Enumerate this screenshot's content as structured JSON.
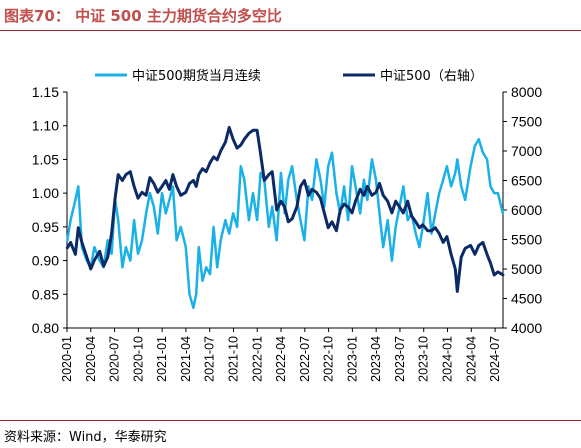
{
  "title": "图表70： 中证 500 主力期货合约多空比",
  "source": "资料来源：Wind，华泰研究",
  "colors": {
    "light": "#1ab0e8",
    "dark": "#0c2a66",
    "title": "#c0504d"
  },
  "chart_data": {
    "type": "line",
    "x_start": "2020-01",
    "x_end": "2024-08",
    "x_tick_labels": [
      "2020-01",
      "2020-04",
      "2020-07",
      "2020-10",
      "2021-01",
      "2021-04",
      "2021-07",
      "2021-10",
      "2022-01",
      "2022-04",
      "2022-07",
      "2022-10",
      "2023-01",
      "2023-04",
      "2023-07",
      "2023-10",
      "2024-01",
      "2024-04",
      "2024-07"
    ],
    "y_left": {
      "min": 0.8,
      "max": 1.15,
      "ticks": [
        "0.80",
        "0.85",
        "0.90",
        "0.95",
        "1.00",
        "1.05",
        "1.10",
        "1.15"
      ]
    },
    "y_right": {
      "min": 4000,
      "max": 8000,
      "ticks": [
        "4000",
        "4500",
        "5000",
        "5500",
        "6000",
        "6500",
        "7000",
        "7500",
        "8000"
      ]
    },
    "legend_position": "top",
    "series": [
      {
        "name": "中证500期货当月连续",
        "axis": "left",
        "color": "#1ab0e8",
        "points": [
          [
            "2020-01-02",
            0.93
          ],
          [
            "2020-01-15",
            0.96
          ],
          [
            "2020-02-03",
            0.99
          ],
          [
            "2020-02-14",
            1.01
          ],
          [
            "2020-02-28",
            0.92
          ],
          [
            "2020-03-16",
            0.9
          ],
          [
            "2020-04-01",
            0.89
          ],
          [
            "2020-04-15",
            0.92
          ],
          [
            "2020-05-05",
            0.9
          ],
          [
            "2020-05-20",
            0.89
          ],
          [
            "2020-06-05",
            0.93
          ],
          [
            "2020-06-20",
            0.91
          ],
          [
            "2020-07-03",
            0.99
          ],
          [
            "2020-07-15",
            0.96
          ],
          [
            "2020-07-31",
            0.89
          ],
          [
            "2020-08-14",
            0.92
          ],
          [
            "2020-08-31",
            0.9
          ],
          [
            "2020-09-15",
            0.96
          ],
          [
            "2020-09-30",
            0.91
          ],
          [
            "2020-10-15",
            0.93
          ],
          [
            "2020-10-31",
            0.97
          ],
          [
            "2020-11-15",
            1.0
          ],
          [
            "2020-11-30",
            0.98
          ],
          [
            "2020-12-15",
            0.94
          ],
          [
            "2020-12-31",
            1.0
          ],
          [
            "2021-01-15",
            0.97
          ],
          [
            "2021-01-29",
            0.99
          ],
          [
            "2021-02-12",
            1.01
          ],
          [
            "2021-02-26",
            0.93
          ],
          [
            "2021-03-12",
            0.95
          ],
          [
            "2021-03-31",
            0.92
          ],
          [
            "2021-04-15",
            0.85
          ],
          [
            "2021-04-30",
            0.83
          ],
          [
            "2021-05-10",
            0.85
          ],
          [
            "2021-05-20",
            0.92
          ],
          [
            "2021-06-04",
            0.87
          ],
          [
            "2021-06-18",
            0.89
          ],
          [
            "2021-07-02",
            0.88
          ],
          [
            "2021-07-16",
            0.95
          ],
          [
            "2021-07-30",
            0.89
          ],
          [
            "2021-08-13",
            0.93
          ],
          [
            "2021-08-31",
            0.96
          ],
          [
            "2021-09-15",
            0.94
          ],
          [
            "2021-09-30",
            0.97
          ],
          [
            "2021-10-15",
            0.95
          ],
          [
            "2021-10-29",
            1.04
          ],
          [
            "2021-11-12",
            1.02
          ],
          [
            "2021-11-30",
            0.96
          ],
          [
            "2021-12-15",
            1.0
          ],
          [
            "2021-12-31",
            0.96
          ],
          [
            "2022-01-14",
            1.03
          ],
          [
            "2022-01-28",
            1.02
          ],
          [
            "2022-02-15",
            0.95
          ],
          [
            "2022-02-28",
            0.98
          ],
          [
            "2022-03-15",
            0.93
          ],
          [
            "2022-03-31",
            1.03
          ],
          [
            "2022-04-15",
            0.97
          ],
          [
            "2022-04-29",
            1.02
          ],
          [
            "2022-05-13",
            1.04
          ],
          [
            "2022-05-31",
            0.99
          ],
          [
            "2022-06-15",
            0.96
          ],
          [
            "2022-06-30",
            0.93
          ],
          [
            "2022-07-15",
            1.01
          ],
          [
            "2022-07-29",
            0.99
          ],
          [
            "2022-08-15",
            1.05
          ],
          [
            "2022-08-31",
            1.02
          ],
          [
            "2022-09-15",
            0.98
          ],
          [
            "2022-09-30",
            1.04
          ],
          [
            "2022-10-14",
            1.06
          ],
          [
            "2022-10-31",
            1.0
          ],
          [
            "2022-11-15",
            0.97
          ],
          [
            "2022-11-30",
            1.01
          ],
          [
            "2022-12-15",
            0.96
          ],
          [
            "2022-12-30",
            1.04
          ],
          [
            "2023-01-13",
            1.01
          ],
          [
            "2023-01-31",
            0.97
          ],
          [
            "2023-02-15",
            1.02
          ],
          [
            "2023-02-28",
            0.99
          ],
          [
            "2023-03-15",
            1.05
          ],
          [
            "2023-03-31",
            1.02
          ],
          [
            "2023-04-14",
            0.97
          ],
          [
            "2023-04-28",
            0.92
          ],
          [
            "2023-05-15",
            0.96
          ],
          [
            "2023-05-31",
            0.9
          ],
          [
            "2023-06-15",
            0.95
          ],
          [
            "2023-06-30",
            0.98
          ],
          [
            "2023-07-14",
            1.01
          ],
          [
            "2023-07-31",
            0.96
          ],
          [
            "2023-08-15",
            0.97
          ],
          [
            "2023-08-31",
            0.94
          ],
          [
            "2023-09-15",
            0.92
          ],
          [
            "2023-09-28",
            0.95
          ],
          [
            "2023-10-16",
            1.0
          ],
          [
            "2023-10-31",
            0.94
          ],
          [
            "2023-11-15",
            0.97
          ],
          [
            "2023-11-30",
            1.0
          ],
          [
            "2023-12-15",
            1.02
          ],
          [
            "2023-12-29",
            1.04
          ],
          [
            "2024-01-15",
            1.01
          ],
          [
            "2024-01-31",
            1.03
          ],
          [
            "2024-02-08",
            1.05
          ],
          [
            "2024-02-23",
            1.01
          ],
          [
            "2024-03-08",
            0.99
          ],
          [
            "2024-03-29",
            1.04
          ],
          [
            "2024-04-15",
            1.07
          ],
          [
            "2024-04-30",
            1.08
          ],
          [
            "2024-05-15",
            1.06
          ],
          [
            "2024-05-31",
            1.05
          ],
          [
            "2024-06-14",
            1.01
          ],
          [
            "2024-06-28",
            1.0
          ],
          [
            "2024-07-12",
            1.0
          ],
          [
            "2024-07-31",
            0.97
          ]
        ]
      },
      {
        "name": "中证500（右轴）",
        "axis": "right",
        "color": "#0c2a66",
        "points": [
          [
            "2020-01-02",
            5360
          ],
          [
            "2020-01-15",
            5450
          ],
          [
            "2020-02-03",
            5250
          ],
          [
            "2020-02-14",
            5700
          ],
          [
            "2020-02-28",
            5450
          ],
          [
            "2020-03-16",
            5200
          ],
          [
            "2020-04-01",
            5000
          ],
          [
            "2020-04-15",
            5150
          ],
          [
            "2020-05-05",
            5300
          ],
          [
            "2020-05-20",
            5050
          ],
          [
            "2020-06-05",
            5200
          ],
          [
            "2020-06-20",
            5600
          ],
          [
            "2020-07-03",
            6200
          ],
          [
            "2020-07-15",
            6600
          ],
          [
            "2020-07-31",
            6500
          ],
          [
            "2020-08-14",
            6600
          ],
          [
            "2020-08-31",
            6650
          ],
          [
            "2020-09-15",
            6400
          ],
          [
            "2020-09-30",
            6200
          ],
          [
            "2020-10-15",
            6300
          ],
          [
            "2020-10-31",
            6250
          ],
          [
            "2020-11-15",
            6550
          ],
          [
            "2020-11-30",
            6450
          ],
          [
            "2020-12-15",
            6300
          ],
          [
            "2020-12-31",
            6400
          ],
          [
            "2021-01-15",
            6500
          ],
          [
            "2021-01-29",
            6350
          ],
          [
            "2021-02-12",
            6600
          ],
          [
            "2021-02-26",
            6400
          ],
          [
            "2021-03-12",
            6250
          ],
          [
            "2021-03-31",
            6300
          ],
          [
            "2021-04-15",
            6450
          ],
          [
            "2021-04-30",
            6500
          ],
          [
            "2021-05-10",
            6400
          ],
          [
            "2021-05-20",
            6600
          ],
          [
            "2021-06-04",
            6700
          ],
          [
            "2021-06-18",
            6650
          ],
          [
            "2021-07-02",
            6800
          ],
          [
            "2021-07-16",
            6900
          ],
          [
            "2021-07-30",
            6850
          ],
          [
            "2021-08-13",
            7000
          ],
          [
            "2021-08-31",
            7150
          ],
          [
            "2021-09-15",
            7400
          ],
          [
            "2021-09-30",
            7200
          ],
          [
            "2021-10-15",
            7050
          ],
          [
            "2021-10-29",
            7100
          ],
          [
            "2021-11-12",
            7200
          ],
          [
            "2021-11-30",
            7300
          ],
          [
            "2021-12-15",
            7350
          ],
          [
            "2021-12-31",
            7350
          ],
          [
            "2022-01-14",
            6950
          ],
          [
            "2022-01-28",
            6500
          ],
          [
            "2022-02-15",
            6600
          ],
          [
            "2022-02-28",
            6650
          ],
          [
            "2022-03-15",
            6000
          ],
          [
            "2022-03-31",
            6150
          ],
          [
            "2022-04-15",
            6050
          ],
          [
            "2022-04-29",
            5800
          ],
          [
            "2022-05-13",
            5850
          ],
          [
            "2022-05-31",
            6050
          ],
          [
            "2022-06-15",
            6400
          ],
          [
            "2022-06-30",
            6500
          ],
          [
            "2022-07-15",
            6250
          ],
          [
            "2022-07-29",
            6350
          ],
          [
            "2022-08-15",
            6300
          ],
          [
            "2022-08-31",
            6200
          ],
          [
            "2022-09-15",
            5950
          ],
          [
            "2022-09-30",
            5700
          ],
          [
            "2022-10-14",
            5800
          ],
          [
            "2022-10-31",
            5650
          ],
          [
            "2022-11-15",
            6000
          ],
          [
            "2022-11-30",
            6100
          ],
          [
            "2022-12-15",
            6050
          ],
          [
            "2022-12-30",
            5950
          ],
          [
            "2023-01-13",
            6150
          ],
          [
            "2023-01-31",
            6350
          ],
          [
            "2023-02-15",
            6250
          ],
          [
            "2023-02-28",
            6400
          ],
          [
            "2023-03-15",
            6250
          ],
          [
            "2023-03-31",
            6300
          ],
          [
            "2023-04-14",
            6450
          ],
          [
            "2023-04-28",
            6250
          ],
          [
            "2023-05-15",
            6150
          ],
          [
            "2023-05-31",
            5950
          ],
          [
            "2023-06-15",
            6150
          ],
          [
            "2023-06-30",
            6050
          ],
          [
            "2023-07-14",
            5950
          ],
          [
            "2023-07-31",
            6150
          ],
          [
            "2023-08-15",
            5900
          ],
          [
            "2023-08-31",
            5800
          ],
          [
            "2023-09-15",
            5700
          ],
          [
            "2023-09-28",
            5750
          ],
          [
            "2023-10-16",
            5650
          ],
          [
            "2023-10-31",
            5650
          ],
          [
            "2023-11-15",
            5700
          ],
          [
            "2023-11-30",
            5600
          ],
          [
            "2023-12-15",
            5450
          ],
          [
            "2023-12-29",
            5550
          ],
          [
            "2024-01-15",
            5250
          ],
          [
            "2024-01-31",
            5000
          ],
          [
            "2024-02-08",
            4620
          ],
          [
            "2024-02-23",
            5200
          ],
          [
            "2024-03-08",
            5350
          ],
          [
            "2024-03-29",
            5400
          ],
          [
            "2024-04-15",
            5250
          ],
          [
            "2024-04-30",
            5400
          ],
          [
            "2024-05-15",
            5450
          ],
          [
            "2024-05-31",
            5250
          ],
          [
            "2024-06-14",
            5100
          ],
          [
            "2024-06-28",
            4900
          ],
          [
            "2024-07-12",
            4950
          ],
          [
            "2024-07-31",
            4900
          ]
        ]
      }
    ]
  }
}
